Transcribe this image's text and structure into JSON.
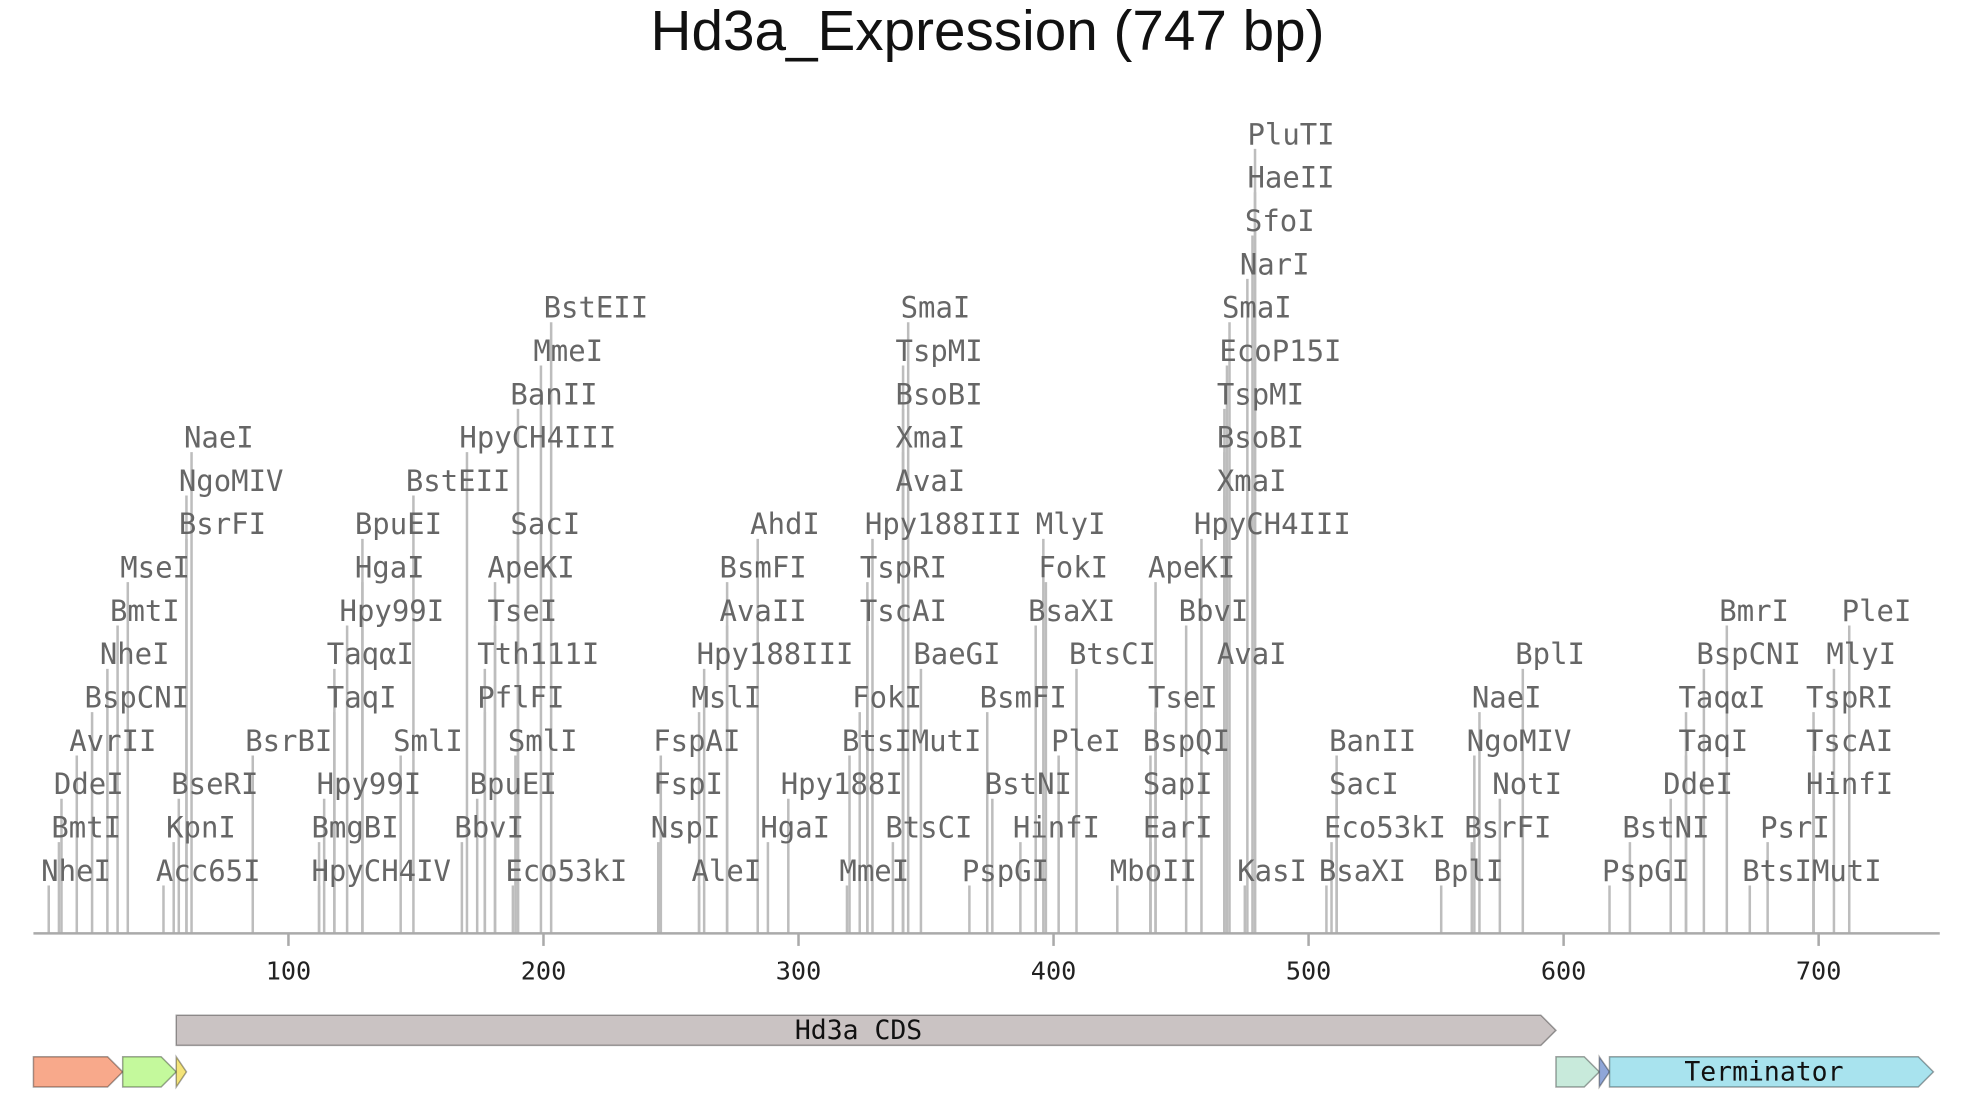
{
  "title": "Hd3a_Expression (747 bp)",
  "axis": {
    "xlim": [
      0,
      747
    ],
    "xticks": [
      100,
      200,
      300,
      400,
      500,
      600,
      700
    ]
  },
  "enzymes": [
    {
      "name": "NheI",
      "position": 6
    },
    {
      "name": "Acc65I",
      "position": 51
    },
    {
      "name": "HpyCH4IV",
      "position": 112
    },
    {
      "name": "Eco53kI",
      "position": 188
    },
    {
      "name": "AleI",
      "position": 261
    },
    {
      "name": "MmeI",
      "position": 319
    },
    {
      "name": "PspGI",
      "position": 367
    },
    {
      "name": "MboII",
      "position": 425
    },
    {
      "name": "KasI",
      "position": 475
    },
    {
      "name": "BplI",
      "position": 552
    },
    {
      "name": "PspGI",
      "position": 618
    },
    {
      "name": "BtsIMutI",
      "position": 673
    },
    {
      "name": "BmtI",
      "position": 10
    },
    {
      "name": "KpnI",
      "position": 55
    },
    {
      "name": "BmgBI",
      "position": 112
    },
    {
      "name": "BbvI",
      "position": 168
    },
    {
      "name": "NspI",
      "position": 245
    },
    {
      "name": "HgaI",
      "position": 288
    },
    {
      "name": "BtsCI",
      "position": 337
    },
    {
      "name": "HinfI",
      "position": 387
    },
    {
      "name": "EarI",
      "position": 438
    },
    {
      "name": "BsaXI",
      "position": 507
    },
    {
      "name": "BsrFI",
      "position": 564
    },
    {
      "name": "BstNI",
      "position": 626
    },
    {
      "name": "PsrI",
      "position": 680
    },
    {
      "name": "DdeI",
      "position": 11
    },
    {
      "name": "BseRI",
      "position": 57
    },
    {
      "name": "Hpy99I",
      "position": 114
    },
    {
      "name": "BpuEI",
      "position": 174
    },
    {
      "name": "FspI",
      "position": 246
    },
    {
      "name": "Hpy188I",
      "position": 296
    },
    {
      "name": "BstNI",
      "position": 376
    },
    {
      "name": "SapI",
      "position": 438
    },
    {
      "name": "Eco53kI",
      "position": 509
    },
    {
      "name": "NotI",
      "position": 575
    },
    {
      "name": "DdeI",
      "position": 642
    },
    {
      "name": "HinfI",
      "position": 698
    },
    {
      "name": "AvrII",
      "position": 17
    },
    {
      "name": "BsrBI",
      "position": 86
    },
    {
      "name": "SmlI",
      "position": 144
    },
    {
      "name": "SmlI",
      "position": 189
    },
    {
      "name": "FspAI",
      "position": 246
    },
    {
      "name": "BtsIMutI",
      "position": 320
    },
    {
      "name": "PleI",
      "position": 402
    },
    {
      "name": "BspQI",
      "position": 438
    },
    {
      "name": "SacI",
      "position": 511
    },
    {
      "name": "NgoMIV",
      "position": 565
    },
    {
      "name": "TaqI",
      "position": 648
    },
    {
      "name": "TscAI",
      "position": 698
    },
    {
      "name": "BspCNI",
      "position": 23
    },
    {
      "name": "TaqI",
      "position": 118
    },
    {
      "name": "PflFI",
      "position": 177
    },
    {
      "name": "MslI",
      "position": 261
    },
    {
      "name": "FokI",
      "position": 324
    },
    {
      "name": "BsmFI",
      "position": 374
    },
    {
      "name": "TseI",
      "position": 440
    },
    {
      "name": "BanII",
      "position": 511
    },
    {
      "name": "NaeI",
      "position": 567
    },
    {
      "name": "TaqαI",
      "position": 648
    },
    {
      "name": "TspRI",
      "position": 698
    },
    {
      "name": "NheI",
      "position": 29
    },
    {
      "name": "TaqαI",
      "position": 118
    },
    {
      "name": "Tth111I",
      "position": 177
    },
    {
      "name": "Hpy188III",
      "position": 263
    },
    {
      "name": "BaeGI",
      "position": 348
    },
    {
      "name": "BtsCI",
      "position": 409
    },
    {
      "name": "AvaI",
      "position": 467
    },
    {
      "name": "BplI",
      "position": 584
    },
    {
      "name": "BspCNI",
      "position": 655
    },
    {
      "name": "BmtI",
      "position": 33
    },
    {
      "name": "Hpy99I",
      "position": 123
    },
    {
      "name": "TseI",
      "position": 181
    },
    {
      "name": "AvaII",
      "position": 272
    },
    {
      "name": "TscAI",
      "position": 327
    },
    {
      "name": "BsaXI",
      "position": 393
    },
    {
      "name": "BbvI",
      "position": 452
    },
    {
      "name": "BmrI",
      "position": 664
    },
    {
      "name": "MseI",
      "position": 37
    },
    {
      "name": "HgaI",
      "position": 129
    },
    {
      "name": "ApeKI",
      "position": 181
    },
    {
      "name": "BsmFI",
      "position": 272
    },
    {
      "name": "TspRI",
      "position": 327
    },
    {
      "name": "FokI",
      "position": 397
    },
    {
      "name": "ApeKI",
      "position": 440
    },
    {
      "name": "MlyI",
      "position": 706
    },
    {
      "name": "BsrFI",
      "position": 60
    },
    {
      "name": "BpuEI",
      "position": 129
    },
    {
      "name": "SacI",
      "position": 190
    },
    {
      "name": "AhdI",
      "position": 284
    },
    {
      "name": "Hpy188III",
      "position": 329
    },
    {
      "name": "HpyCH4III",
      "position": 458
    },
    {
      "name": "PleI",
      "position": 712
    },
    {
      "name": "NgoMIV",
      "position": 60
    },
    {
      "name": "BstEII",
      "position": 149
    },
    {
      "name": "AvaI",
      "position": 341
    },
    {
      "name": "MlyI",
      "position": 396
    },
    {
      "name": "XmaI",
      "position": 467
    },
    {
      "name": "NaeI",
      "position": 62
    },
    {
      "name": "HpyCH4III",
      "position": 170
    },
    {
      "name": "XmaI",
      "position": 341
    },
    {
      "name": "BsoBI",
      "position": 467
    },
    {
      "name": "BanII",
      "position": 190
    },
    {
      "name": "BsoBI",
      "position": 341
    },
    {
      "name": "TspMI",
      "position": 467
    },
    {
      "name": "MmeI",
      "position": 199
    },
    {
      "name": "TspMI",
      "position": 341
    },
    {
      "name": "EcoP15I",
      "position": 468
    },
    {
      "name": "BstEII",
      "position": 203
    },
    {
      "name": "SmaI",
      "position": 343
    },
    {
      "name": "SmaI",
      "position": 469
    },
    {
      "name": "NarI",
      "position": 476
    },
    {
      "name": "SfoI",
      "position": 478
    },
    {
      "name": "HaeII",
      "position": 479
    },
    {
      "name": "PluTI",
      "position": 479
    }
  ],
  "features": [
    {
      "start": 0,
      "end": 35,
      "color": "#f8a98b"
    },
    {
      "start": 35,
      "end": 56,
      "color": "#c4f99c"
    },
    {
      "start": 56,
      "end": 60,
      "color": "#f4e47a"
    },
    {
      "start": 597,
      "end": 614,
      "color": "#c8eadb"
    },
    {
      "start": 614,
      "end": 618,
      "color": "#8fa6d8"
    },
    {
      "label": "Terminator",
      "start": 618,
      "end": 745,
      "color": "#a8e3ee"
    },
    {
      "label": "Hd3a CDS",
      "start": 56,
      "end": 597,
      "color": "#cac3c3"
    }
  ]
}
